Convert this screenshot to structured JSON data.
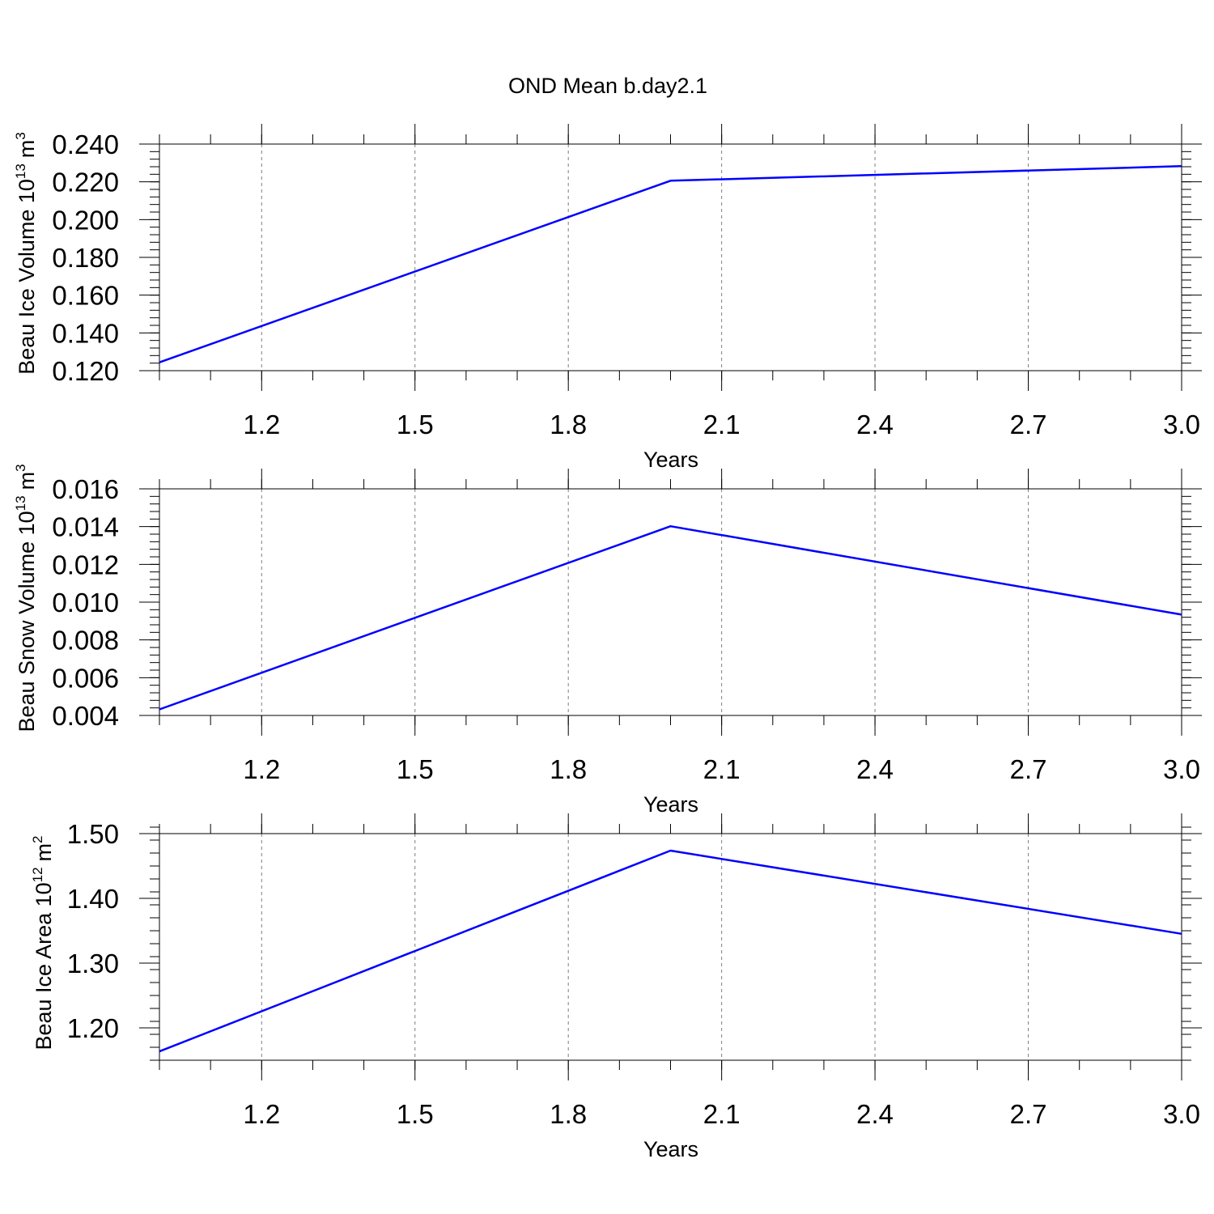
{
  "figure": {
    "title": "OND Mean b.day2.1"
  },
  "chart_data": [
    {
      "type": "line",
      "title": "",
      "xlabel": "Years",
      "ylabel": "Beau Ice Volume 10",
      "ylabel_exponent": "13",
      "ylabel_unit": "m",
      "ylabel_unit_exponent": "3",
      "xlim": [
        1.0,
        3.0
      ],
      "ylim": [
        0.12,
        0.24
      ],
      "xticks": [
        1.2,
        1.5,
        1.8,
        2.1,
        2.4,
        2.7,
        3.0
      ],
      "xtick_labels": [
        "1.2",
        "1.5",
        "1.8",
        "2.1",
        "2.4",
        "2.7",
        "3.0"
      ],
      "yticks": [
        0.12,
        0.14,
        0.16,
        0.18,
        0.2,
        0.22,
        0.24
      ],
      "ytick_labels": [
        "0.120",
        "0.140",
        "0.160",
        "0.180",
        "0.200",
        "0.220",
        "0.240"
      ],
      "x_minor_step": 0.1,
      "y_minor_step": 0.004,
      "grid": "vertical dashed at major x ticks",
      "legend": "none",
      "series": [
        {
          "color": "#0000ff",
          "x": [
            1.0,
            2.0,
            3.0
          ],
          "y": [
            0.1244,
            0.2206,
            0.2283
          ]
        }
      ]
    },
    {
      "type": "line",
      "title": "",
      "xlabel": "Years",
      "ylabel": "Beau Snow Volume 10",
      "ylabel_exponent": "13",
      "ylabel_unit": "m",
      "ylabel_unit_exponent": "3",
      "xlim": [
        1.0,
        3.0
      ],
      "ylim": [
        0.004,
        0.016
      ],
      "xticks": [
        1.2,
        1.5,
        1.8,
        2.1,
        2.4,
        2.7,
        3.0
      ],
      "xtick_labels": [
        "1.2",
        "1.5",
        "1.8",
        "2.1",
        "2.4",
        "2.7",
        "3.0"
      ],
      "yticks": [
        0.004,
        0.006,
        0.008,
        0.01,
        0.012,
        0.014,
        0.016
      ],
      "ytick_labels": [
        "0.004",
        "0.006",
        "0.008",
        "0.010",
        "0.012",
        "0.014",
        "0.016"
      ],
      "x_minor_step": 0.1,
      "y_minor_step": 0.0004,
      "grid": "vertical dashed at major x ticks",
      "legend": "none",
      "series": [
        {
          "color": "#0000ff",
          "x": [
            1.0,
            2.0,
            3.0
          ],
          "y": [
            0.00432,
            0.01402,
            0.00934
          ]
        }
      ]
    },
    {
      "type": "line",
      "title": "",
      "xlabel": "Years",
      "ylabel": "Beau Ice Area 10",
      "ylabel_exponent": "12",
      "ylabel_unit": "m",
      "ylabel_unit_exponent": "2",
      "xlim": [
        1.0,
        3.0
      ],
      "ylim": [
        1.15,
        1.5
      ],
      "xticks": [
        1.2,
        1.5,
        1.8,
        2.1,
        2.4,
        2.7,
        3.0
      ],
      "xtick_labels": [
        "1.2",
        "1.5",
        "1.8",
        "2.1",
        "2.4",
        "2.7",
        "3.0"
      ],
      "yticks": [
        1.2,
        1.3,
        1.4,
        1.5
      ],
      "ytick_labels": [
        "1.20",
        "1.30",
        "1.40",
        "1.50"
      ],
      "x_minor_step": 0.1,
      "y_minor_step": 0.02,
      "grid": "vertical dashed at major x ticks",
      "legend": "none",
      "series": [
        {
          "color": "#0000ff",
          "x": [
            1.0,
            2.0,
            3.0
          ],
          "y": [
            1.1636,
            1.4738,
            1.3452
          ]
        }
      ]
    }
  ]
}
